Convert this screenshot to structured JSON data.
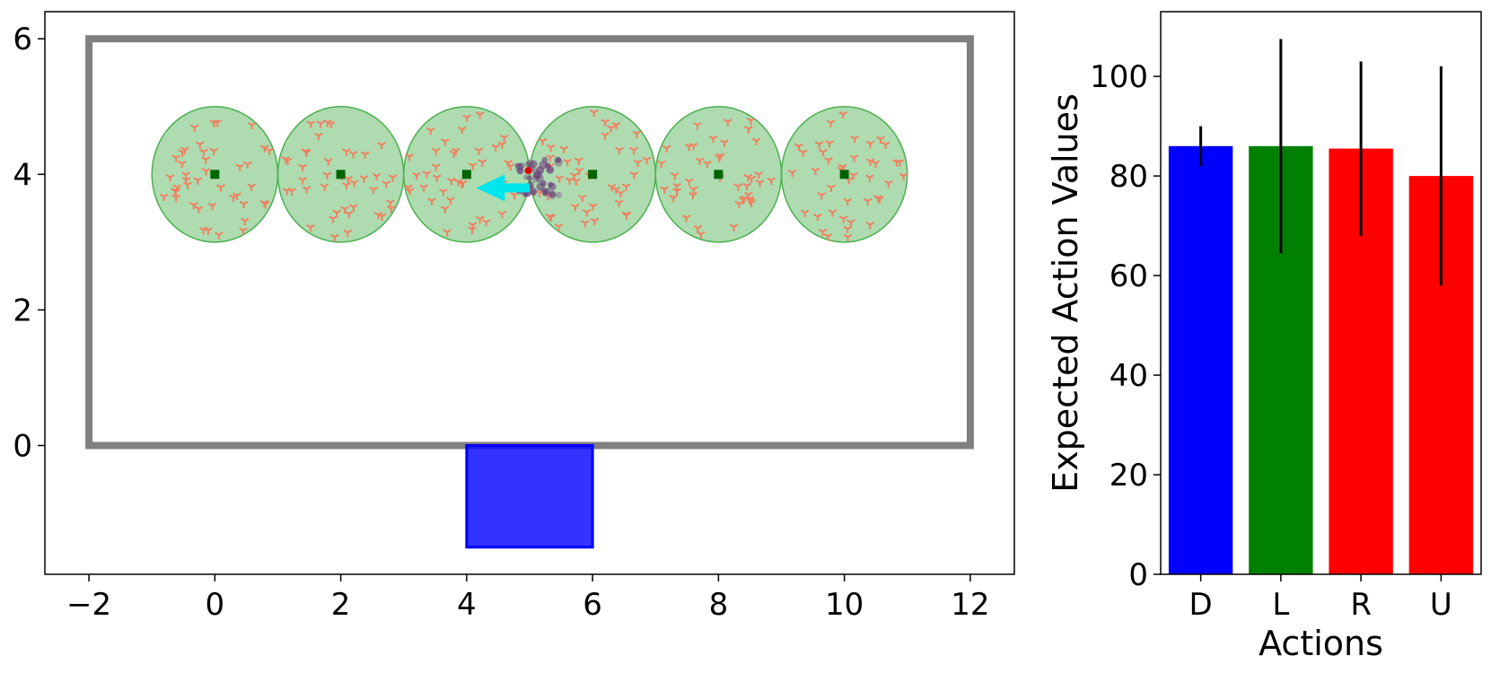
{
  "chart_data": [
    {
      "type": "scatter",
      "title": "",
      "xlabel": "",
      "ylabel": "",
      "xlim": [
        -2.7,
        12.7
      ],
      "ylim": [
        -1.9,
        6.4
      ],
      "xticks": [
        -2,
        0,
        2,
        4,
        6,
        8,
        10,
        12
      ],
      "yticks": [
        0,
        2,
        4,
        6
      ],
      "xtick_labels": [
        "−2",
        "0",
        "2",
        "4",
        "6",
        "8",
        "10",
        "12"
      ],
      "ytick_labels": [
        "0",
        "2",
        "4",
        "6"
      ],
      "grid": false,
      "boundary": {
        "x0": -2,
        "y0": 0,
        "x1": 12,
        "y1": 6,
        "color": "#808080"
      },
      "goal_box": {
        "x0": 4,
        "y0": -1.5,
        "x1": 6,
        "y1": 0,
        "color": "#0000ff"
      },
      "circles": [
        {
          "cx": 0,
          "cy": 4,
          "rx": 1,
          "ry": 1
        },
        {
          "cx": 2,
          "cy": 4,
          "rx": 1,
          "ry": 1
        },
        {
          "cx": 4,
          "cy": 4,
          "rx": 1,
          "ry": 1
        },
        {
          "cx": 6,
          "cy": 4,
          "rx": 1,
          "ry": 1
        },
        {
          "cx": 8,
          "cy": 4,
          "rx": 1,
          "ry": 1
        },
        {
          "cx": 10,
          "cy": 4,
          "rx": 1,
          "ry": 1
        }
      ],
      "circle_color": "#4caf50",
      "center_marker_color": "#006400",
      "particle_marker_color": "#f08060",
      "particles_per_circle": 42,
      "agent": {
        "x": 5.05,
        "y": 3.95,
        "color": "#6a3d7a"
      },
      "arrow": {
        "x_start": 5.0,
        "y_start": 3.8,
        "x_end": 4.15,
        "y_end": 3.8,
        "color": "#00e5ee"
      }
    },
    {
      "type": "bar",
      "title": "",
      "xlabel": "Actions",
      "ylabel": "Expected Action Values",
      "ylim": [
        0,
        113
      ],
      "yticks": [
        0,
        20,
        40,
        60,
        80,
        100
      ],
      "categories": [
        "D",
        "L",
        "R",
        "U"
      ],
      "values": [
        86,
        86,
        85.5,
        80
      ],
      "errors": [
        4,
        21.5,
        17.5,
        22
      ],
      "colors": [
        "#0000ff",
        "#008000",
        "#ff0000",
        "#ff0000"
      ],
      "grid": false
    }
  ]
}
